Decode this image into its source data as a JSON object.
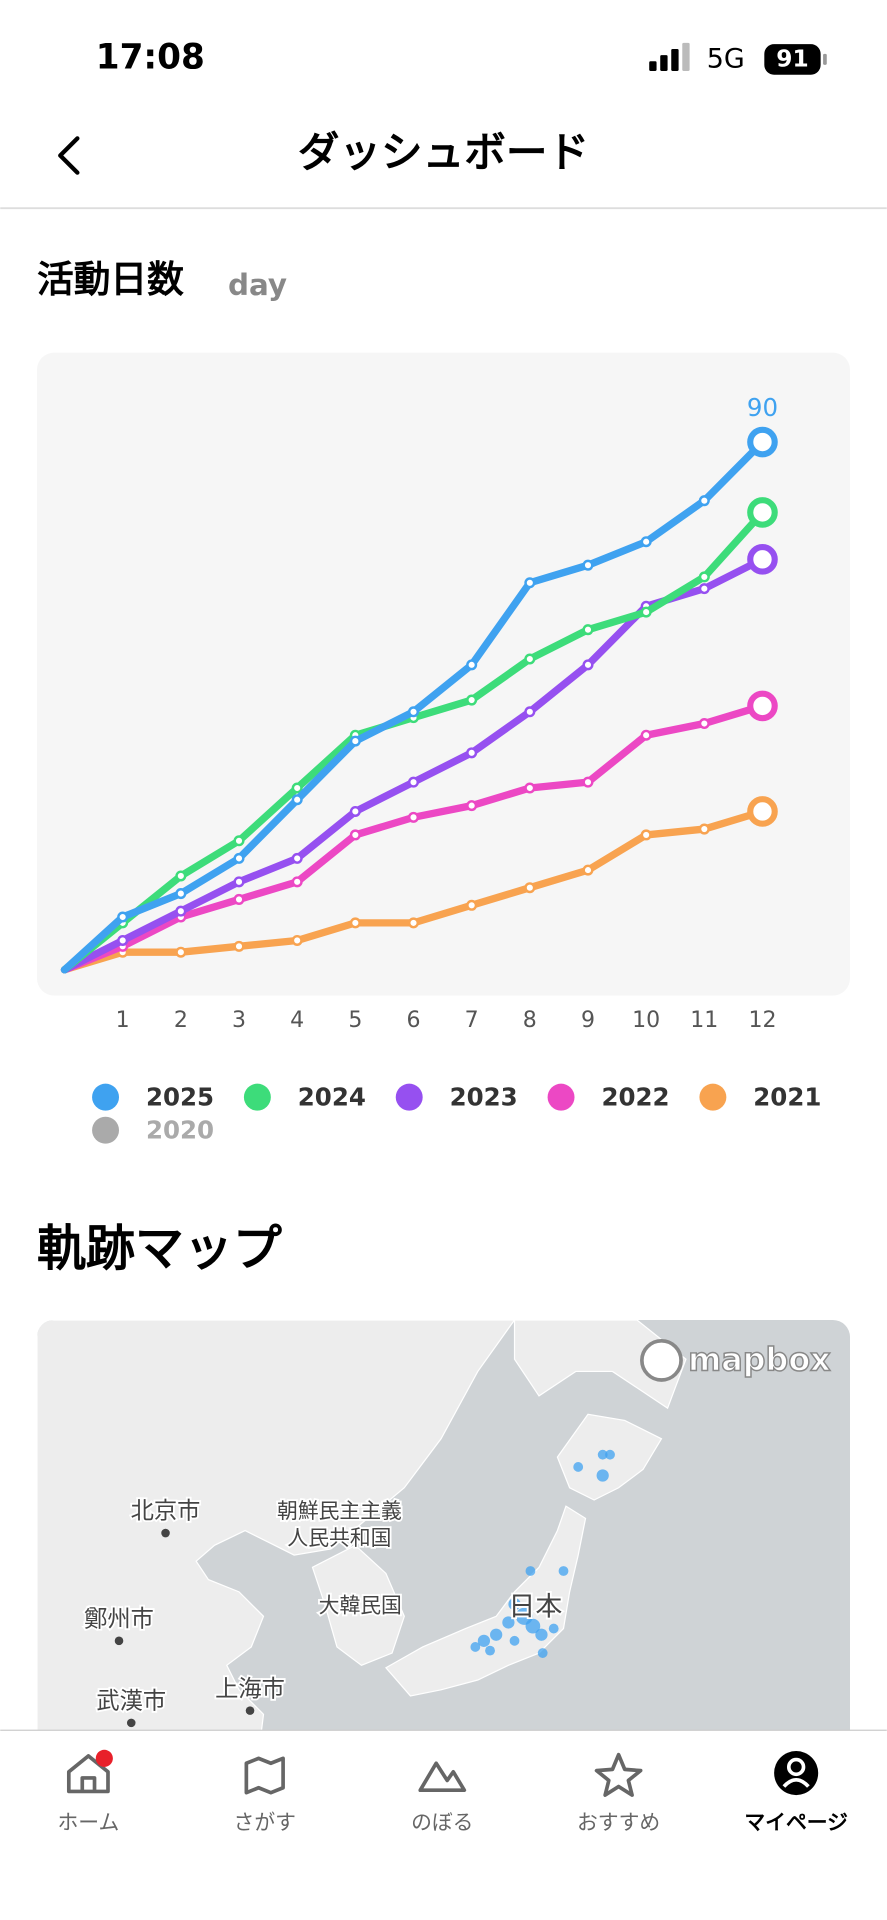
{
  "status": {
    "time": "17:08",
    "network": "5G",
    "battery": "91"
  },
  "header": {
    "title": "ダッシュボード"
  },
  "activity": {
    "title": "活動日数",
    "unit": "day"
  },
  "chart_data": {
    "type": "line",
    "x": [
      0,
      1,
      2,
      3,
      4,
      5,
      6,
      7,
      8,
      9,
      10,
      11,
      12
    ],
    "xlim": [
      0,
      12
    ],
    "xticks": [
      1,
      2,
      3,
      4,
      5,
      6,
      7,
      8,
      9,
      10,
      11,
      12
    ],
    "ylim": [
      0,
      90
    ],
    "series": [
      {
        "name": "2025",
        "color": "#3fa2f0",
        "values": [
          0,
          9,
          13,
          19,
          29,
          39,
          44,
          52,
          66,
          69,
          73,
          80,
          90
        ]
      },
      {
        "name": "2024",
        "color": "#3ddc7a",
        "values": [
          0,
          8,
          16,
          22,
          31,
          40,
          43,
          46,
          53,
          58,
          61,
          67,
          78
        ]
      },
      {
        "name": "2023",
        "color": "#9650f0",
        "values": [
          0,
          5,
          10,
          15,
          19,
          27,
          32,
          37,
          44,
          52,
          62,
          65,
          70
        ]
      },
      {
        "name": "2022",
        "color": "#ec48c4",
        "values": [
          0,
          4,
          9,
          12,
          15,
          23,
          26,
          28,
          31,
          32,
          40,
          42,
          45
        ]
      },
      {
        "name": "2021",
        "color": "#f8a350",
        "values": [
          0,
          3,
          3,
          4,
          5,
          8,
          8,
          11,
          14,
          17,
          23,
          24,
          27
        ]
      },
      {
        "name": "2020",
        "color": "#aaaaaa",
        "visible": false
      }
    ]
  },
  "map": {
    "title": "軌跡マップ",
    "attribution": "mapbox",
    "labels": [
      "北京市",
      "朝鮮民主主義",
      "人民共和国",
      "大韓民国",
      "鄭州市",
      "武漢市",
      "上海市",
      "日本"
    ]
  },
  "nav": [
    "ホーム",
    "さがす",
    "のぼる",
    "おすすめ",
    "マイページ"
  ]
}
